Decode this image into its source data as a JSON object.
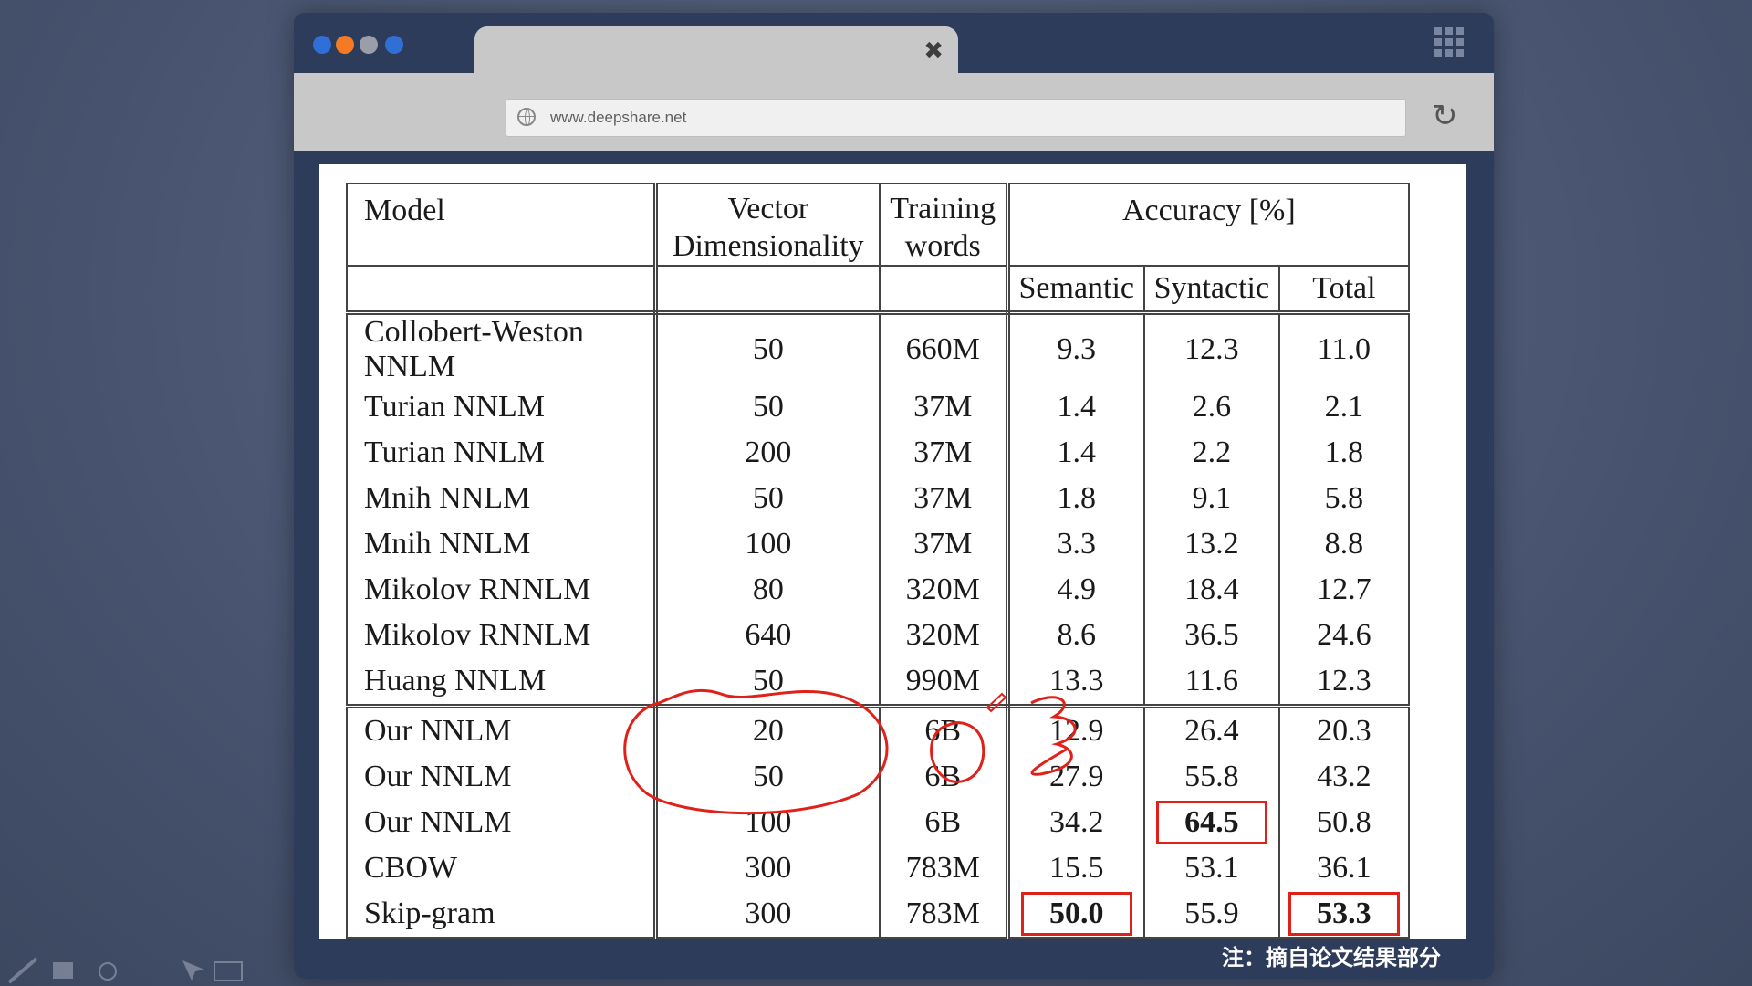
{
  "browser": {
    "url": "www.deepshare.net",
    "tab_close_icon": "close-icon",
    "traffic_lights": [
      "#2f6fd6",
      "#f57a24",
      "#9a9ea8",
      "#2f6fd6"
    ]
  },
  "table": {
    "header": {
      "model": "Model",
      "vector_line1": "Vector",
      "vector_line2": "Dimensionality",
      "training_line1": "Training",
      "training_line2": "words",
      "accuracy": "Accuracy [%]",
      "semantic": "Semantic",
      "syntactic": "Syntactic",
      "total": "Total"
    },
    "rows": [
      {
        "model": "Collobert-Weston NNLM",
        "dim": "50",
        "words": "660M",
        "semantic": "9.3",
        "syntactic": "12.3",
        "total": "11.0"
      },
      {
        "model": "Turian NNLM",
        "dim": "50",
        "words": "37M",
        "semantic": "1.4",
        "syntactic": "2.6",
        "total": "2.1"
      },
      {
        "model": "Turian NNLM",
        "dim": "200",
        "words": "37M",
        "semantic": "1.4",
        "syntactic": "2.2",
        "total": "1.8"
      },
      {
        "model": "Mnih NNLM",
        "dim": "50",
        "words": "37M",
        "semantic": "1.8",
        "syntactic": "9.1",
        "total": "5.8"
      },
      {
        "model": "Mnih NNLM",
        "dim": "100",
        "words": "37M",
        "semantic": "3.3",
        "syntactic": "13.2",
        "total": "8.8"
      },
      {
        "model": "Mikolov RNNLM",
        "dim": "80",
        "words": "320M",
        "semantic": "4.9",
        "syntactic": "18.4",
        "total": "12.7"
      },
      {
        "model": "Mikolov RNNLM",
        "dim": "640",
        "words": "320M",
        "semantic": "8.6",
        "syntactic": "36.5",
        "total": "24.6"
      },
      {
        "model": "Huang NNLM",
        "dim": "50",
        "words": "990M",
        "semantic": "13.3",
        "syntactic": "11.6",
        "total": "12.3"
      },
      {
        "model": "Our NNLM",
        "dim": "20",
        "words": "6B",
        "semantic": "12.9",
        "syntactic": "26.4",
        "total": "20.3"
      },
      {
        "model": "Our NNLM",
        "dim": "50",
        "words": "6B",
        "semantic": "27.9",
        "syntactic": "55.8",
        "total": "43.2"
      },
      {
        "model": "Our NNLM",
        "dim": "100",
        "words": "6B",
        "semantic": "34.2",
        "syntactic": "64.5",
        "total": "50.8"
      },
      {
        "model": "CBOW",
        "dim": "300",
        "words": "783M",
        "semantic": "15.5",
        "syntactic": "53.1",
        "total": "36.1"
      },
      {
        "model": "Skip-gram",
        "dim": "300",
        "words": "783M",
        "semantic": "50.0",
        "syntactic": "55.9",
        "total": "53.3"
      }
    ]
  },
  "note": "注：摘自论文结果部分",
  "annotation_color": "#e0211a"
}
